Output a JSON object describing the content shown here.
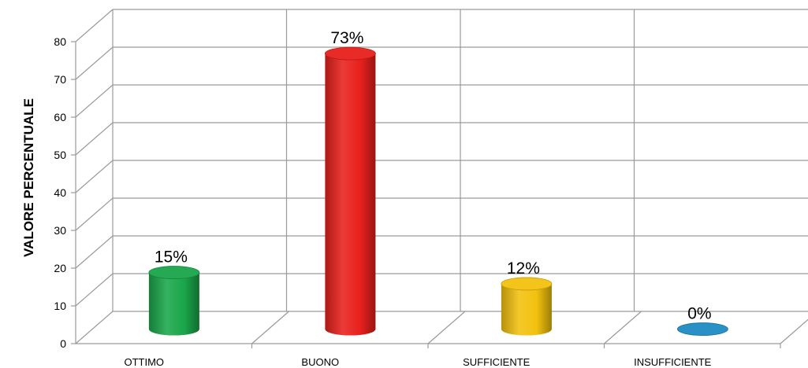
{
  "chart_data": {
    "type": "bar",
    "title": "",
    "xlabel": "",
    "ylabel": "VALORE PERCENTUALE",
    "ylim": [
      0,
      80
    ],
    "yticks": [
      0,
      10,
      20,
      30,
      40,
      50,
      60,
      70,
      80
    ],
    "grid": true,
    "style": "3d-cylinder",
    "categories": [
      "OTTIMO",
      "BUONO",
      "SUFFICIENTE",
      "INSUFFICIENTE"
    ],
    "values": [
      15,
      73,
      12,
      0
    ],
    "data_labels": [
      "15%",
      "73%",
      "12%",
      "0%"
    ],
    "colors": [
      "#1aa64a",
      "#e8201c",
      "#f2c10e",
      "#1e8bc3"
    ]
  }
}
